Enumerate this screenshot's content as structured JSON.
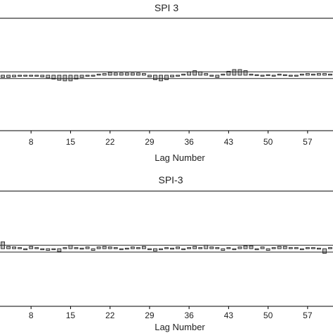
{
  "chart_data": [
    {
      "type": "bar",
      "title": "SPI 3",
      "xlabel": "Lag Number",
      "ylabel": "",
      "x_ticks": [
        8,
        15,
        22,
        29,
        36,
        43,
        50,
        57
      ],
      "xlim": [
        2.5,
        61.5
      ],
      "ylim": [
        -1,
        1
      ],
      "confidence_limit": 0.06,
      "lags": [
        3,
        4,
        5,
        6,
        7,
        8,
        9,
        10,
        11,
        12,
        13,
        14,
        15,
        16,
        17,
        18,
        19,
        20,
        21,
        22,
        23,
        24,
        25,
        26,
        27,
        28,
        29,
        30,
        31,
        32,
        33,
        34,
        35,
        36,
        37,
        38,
        39,
        40,
        41,
        42,
        43,
        44,
        45,
        46,
        47,
        48,
        49,
        50,
        51,
        52,
        53,
        54,
        55,
        56,
        57,
        58,
        59,
        60,
        61
      ],
      "values": [
        -0.04,
        -0.04,
        -0.03,
        -0.02,
        -0.01,
        0.0,
        -0.02,
        -0.03,
        -0.05,
        -0.07,
        -0.09,
        -0.1,
        -0.1,
        -0.07,
        -0.04,
        -0.02,
        -0.01,
        0.02,
        0.03,
        0.05,
        0.04,
        0.04,
        0.04,
        0.04,
        0.04,
        0.03,
        -0.03,
        -0.08,
        -0.1,
        -0.08,
        -0.03,
        0.0,
        0.02,
        0.06,
        0.08,
        0.06,
        0.03,
        0.0,
        -0.04,
        0.02,
        0.07,
        0.1,
        0.1,
        0.08,
        0.02,
        0.01,
        -0.01,
        0.01,
        -0.01,
        0.02,
        0.01,
        -0.01,
        0.0,
        0.02,
        0.03,
        0.02,
        0.03,
        0.03,
        0.02
      ]
    },
    {
      "type": "bar",
      "title": "SPI-3",
      "xlabel": "Lag Number",
      "ylabel": "",
      "x_ticks": [
        8,
        15,
        22,
        29,
        36,
        43,
        50,
        57
      ],
      "xlim": [
        2.5,
        61.5
      ],
      "ylim": [
        -1,
        1
      ],
      "confidence_limit": 0.06,
      "lags": [
        3,
        4,
        5,
        6,
        7,
        8,
        9,
        10,
        11,
        12,
        13,
        14,
        15,
        16,
        17,
        18,
        19,
        20,
        21,
        22,
        23,
        24,
        25,
        26,
        27,
        28,
        29,
        30,
        31,
        32,
        33,
        34,
        35,
        36,
        37,
        38,
        39,
        40,
        41,
        42,
        43,
        44,
        45,
        46,
        47,
        48,
        49,
        50,
        51,
        52,
        53,
        54,
        55,
        56,
        57,
        58,
        59,
        60,
        61
      ],
      "values": [
        0.12,
        0.04,
        0.03,
        0.02,
        -0.02,
        0.04,
        0.02,
        -0.02,
        -0.03,
        0.0,
        -0.05,
        0.02,
        0.06,
        0.02,
        0.01,
        0.03,
        -0.03,
        0.03,
        0.04,
        0.03,
        0.02,
        -0.01,
        0.01,
        0.03,
        0.02,
        0.04,
        0.0,
        -0.04,
        -0.01,
        0.02,
        0.01,
        0.03,
        -0.01,
        0.02,
        0.04,
        0.02,
        0.06,
        0.03,
        0.02,
        -0.03,
        0.02,
        0.0,
        0.03,
        0.05,
        0.05,
        -0.02,
        0.03,
        -0.03,
        0.02,
        0.04,
        0.04,
        0.02,
        0.02,
        0.0,
        0.02,
        0.02,
        0.01,
        -0.08,
        0.02
      ]
    }
  ]
}
